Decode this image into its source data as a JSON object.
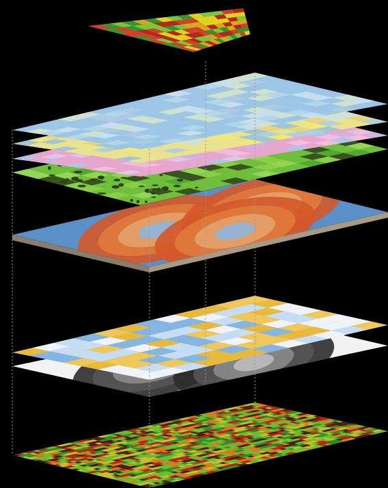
{
  "figure": {
    "background": "#000000",
    "guide_color": "#9a9a9a",
    "layers": [
      {
        "key": "yield-map",
        "kind": "patchy",
        "palette": [
          "#b8171a",
          "#d9332b",
          "#e8a21c",
          "#f0d21f",
          "#7cc43a",
          "#2f8f2c"
        ]
      },
      {
        "key": "basemap",
        "kind": "imagery",
        "palette": [
          "#9dc6e6",
          "#b8d8ea",
          "#cfe3ec",
          "#aecde0",
          "#d8e6c8"
        ]
      },
      {
        "key": "soil-types",
        "kind": "blocks",
        "palette": [
          "#e9e38e",
          "#f3ea6e",
          "#a9cbe9",
          "#c8e0f2",
          "#e5d27a",
          "#93bfe0"
        ]
      },
      {
        "key": "land-cover",
        "kind": "blocks",
        "palette": [
          "#e8a6cf",
          "#c9b6e6",
          "#a8c8ec",
          "#f2c1dc",
          "#d8cfef"
        ]
      },
      {
        "key": "vegetation",
        "kind": "blocks",
        "palette": [
          "#6fbf3b",
          "#8ed04a",
          "#4ea52e",
          "#9ad85c",
          "#2f3f1c"
        ]
      },
      {
        "key": "interpolated-surface",
        "kind": "contour",
        "palette": [
          "#5b8fc8",
          "#8fb5da",
          "#e3a26a",
          "#e07a3c",
          "#d4582a"
        ]
      },
      {
        "key": "grid-classification",
        "kind": "grid",
        "palette": [
          "#f0f4fa",
          "#c6ddf3",
          "#85b6e2",
          "#e8b93a",
          "#f0c85a"
        ]
      },
      {
        "key": "elevation",
        "kind": "contour",
        "palette": [
          "#f2f2f2",
          "#bdbdbd",
          "#8a8a8a",
          "#555555",
          "#2c2c2c"
        ]
      },
      {
        "key": "raw-data",
        "kind": "streaks",
        "palette": [
          "#2e8f2a",
          "#6abf2e",
          "#c7c22b",
          "#d77a1f",
          "#b32418",
          "#4a1a10"
        ]
      }
    ]
  }
}
